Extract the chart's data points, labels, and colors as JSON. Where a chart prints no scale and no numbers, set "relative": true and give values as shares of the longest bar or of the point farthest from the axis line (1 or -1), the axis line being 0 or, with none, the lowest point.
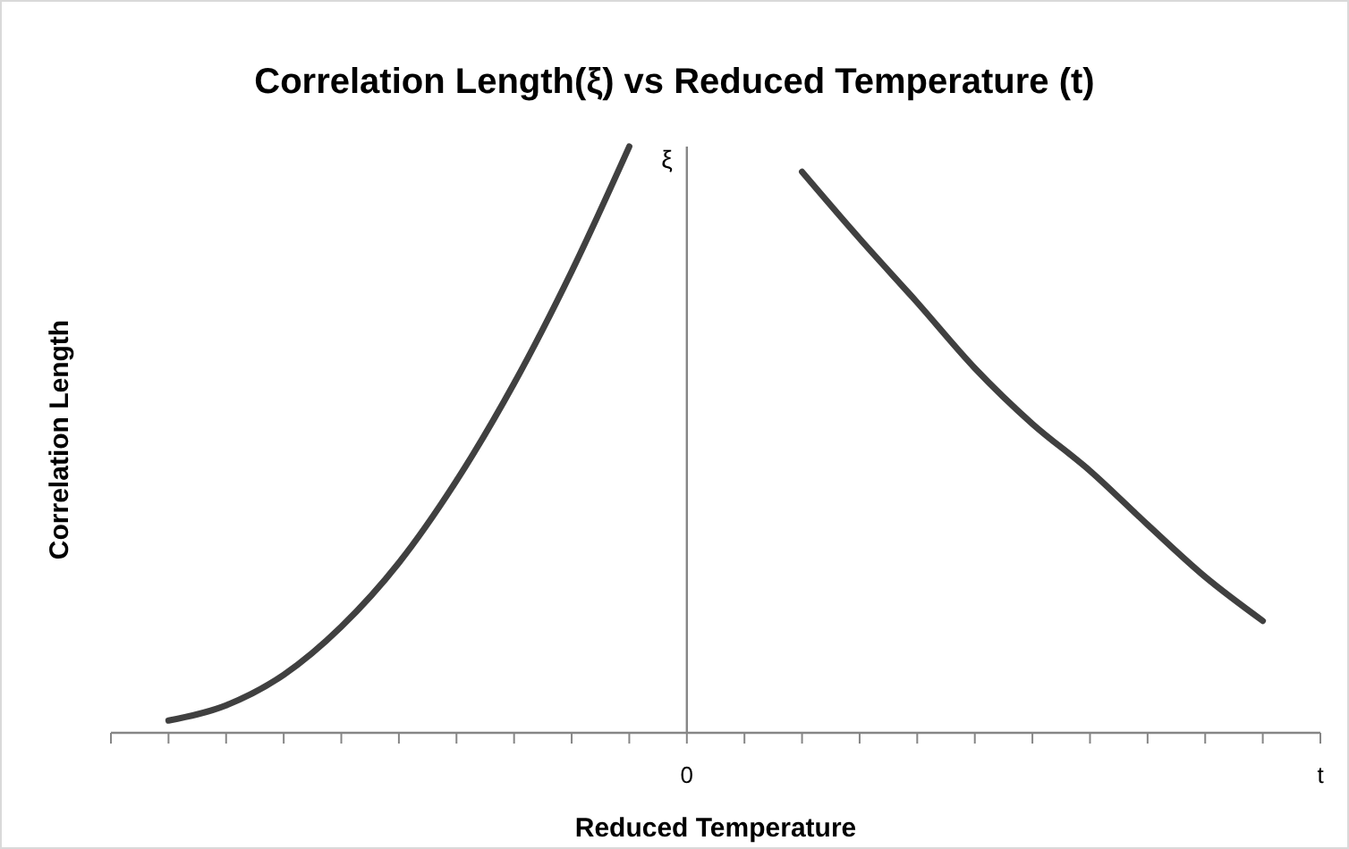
{
  "chart_data": {
    "type": "line",
    "title": "Correlation Length(ξ) vs Reduced Temperature (t)",
    "xlabel": "Reduced Temperature",
    "ylabel": "Correlation Length",
    "annotations": [
      "ξ"
    ],
    "relative": true,
    "categories": [
      null,
      null,
      null,
      null,
      null,
      null,
      null,
      null,
      null,
      null,
      "0",
      null,
      null,
      null,
      null,
      null,
      null,
      null,
      null,
      null,
      null,
      "t"
    ],
    "marker": "none",
    "line_style": "solid",
    "series": [
      {
        "color": "#404040",
        "values": [
          null,
          0.021,
          0.047,
          0.099,
          0.181,
          0.29,
          0.43,
          0.596,
          0.787,
          1,
          null,
          null,
          null,
          null,
          null,
          null,
          null,
          null,
          null,
          null,
          null,
          null
        ]
      },
      {
        "color": "#404040",
        "values": [
          null,
          null,
          null,
          null,
          null,
          null,
          null,
          null,
          null,
          null,
          null,
          null,
          0.957,
          0.843,
          0.734,
          0.622,
          0.527,
          0.447,
          0.355,
          0.266,
          0.191,
          null
        ]
      }
    ]
  }
}
